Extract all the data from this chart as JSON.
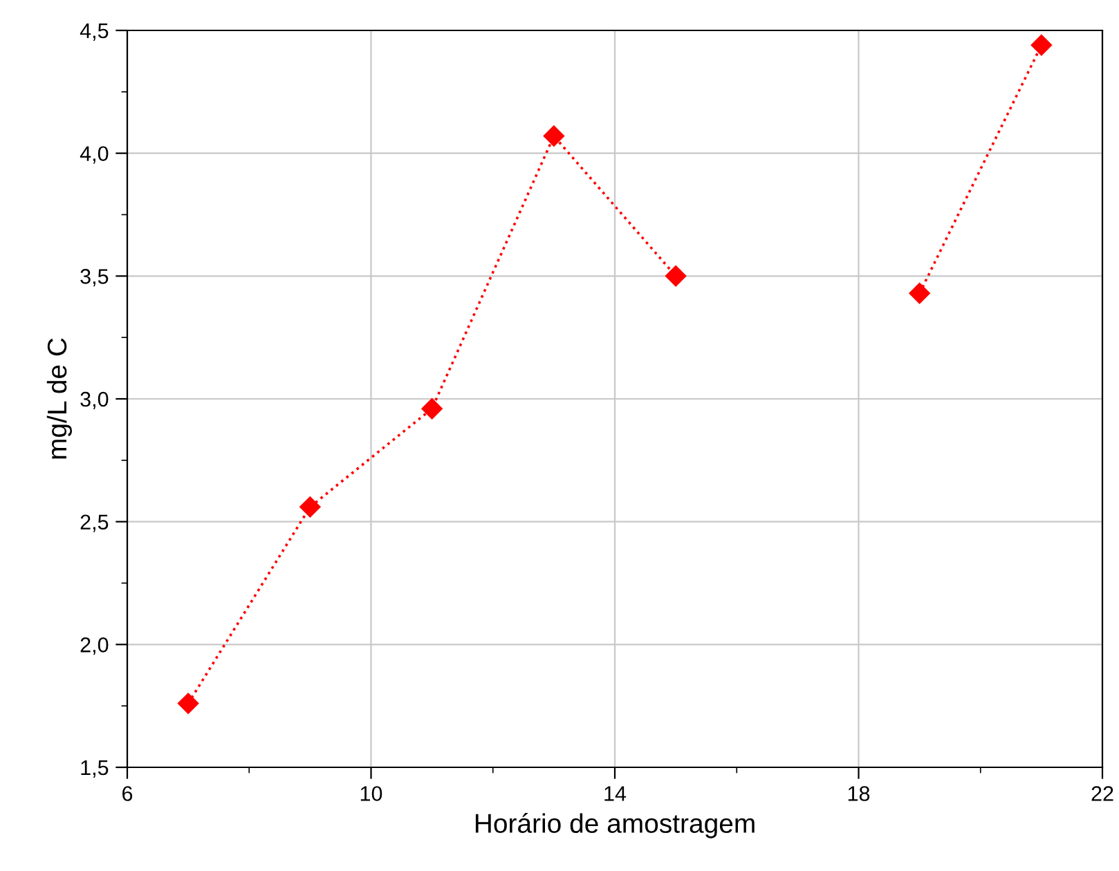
{
  "chart_data": {
    "type": "line",
    "xlabel": "Horário de amostragem",
    "ylabel": "mg/L de C",
    "x": [
      7,
      9,
      11,
      13,
      15,
      17,
      19,
      21
    ],
    "series": [
      {
        "color": "#ff0000",
        "values": [
          1.76,
          2.56,
          2.96,
          4.07,
          3.5,
          null,
          3.43,
          4.44
        ]
      }
    ],
    "xlim": [
      6,
      22
    ],
    "xticks": [
      6,
      {
        "value": 8,
        "label": null
      },
      10,
      {
        "value": 12,
        "label": null
      },
      14,
      {
        "value": 16,
        "label": null
      },
      18,
      {
        "value": 20,
        "label": null
      },
      22
    ],
    "ylim": [
      1.5,
      4.5
    ],
    "yticks": [
      {
        "value": 1.5,
        "label": "1,5"
      },
      {
        "value": 1.75,
        "label": null
      },
      {
        "value": 2.0,
        "label": "2,0"
      },
      {
        "value": 2.25,
        "label": null
      },
      {
        "value": 2.5,
        "label": "2,5"
      },
      {
        "value": 2.75,
        "label": null
      },
      {
        "value": 3.0,
        "label": "3,0"
      },
      {
        "value": 3.25,
        "label": null
      },
      {
        "value": 3.5,
        "label": "3,5"
      },
      {
        "value": 3.75,
        "label": null
      },
      {
        "value": 4.0,
        "label": "4,0"
      },
      {
        "value": 4.25,
        "label": null
      },
      {
        "value": 4.5,
        "label": "4,5"
      }
    ],
    "grid": true,
    "marker": "diamond",
    "line_style": "dotted"
  }
}
